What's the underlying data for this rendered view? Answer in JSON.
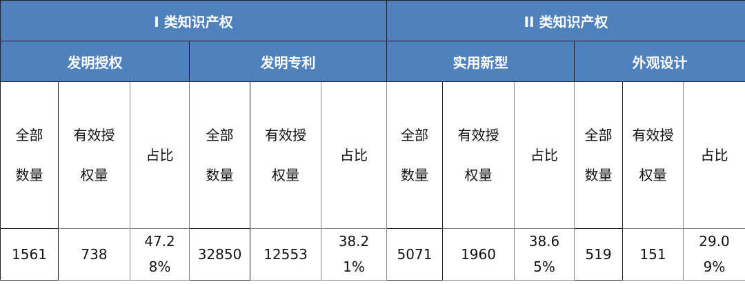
{
  "groups": [
    "I 类知识产权",
    "II 类知识产权"
  ],
  "subgroups": [
    "发明授权",
    "发明专利",
    "实用新型",
    "外观设计"
  ],
  "columns": [
    "全部数量",
    "有效授权量",
    "占比"
  ],
  "rows": [
    [
      "1561",
      "738",
      "47.28%",
      "32850",
      "12553",
      "38.21%",
      "5071",
      "1960",
      "38.65%",
      "519",
      "151",
      "29.09%"
    ]
  ]
}
